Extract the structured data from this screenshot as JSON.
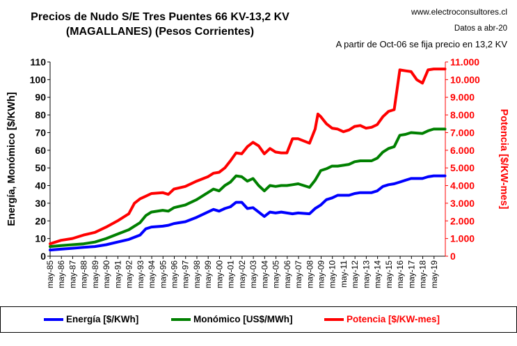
{
  "title_line1": "Precios de Nudo S/E Tres Puentes 66 KV-13,2 KV",
  "title_line2": "(MAGALLANES) (Pesos Corrientes)",
  "website": "www.electroconsultores.cl",
  "data_date": "Datos a abr-20",
  "note": "A partir de Oct-06 se fija precio en 13,2 KV",
  "chart_data": {
    "type": "line",
    "x_ticks": [
      "may-85",
      "may-86",
      "may-87",
      "may-88",
      "may-89",
      "may-90",
      "may-91",
      "may-92",
      "may-93",
      "may-94",
      "may-95",
      "may-96",
      "may-97",
      "may-98",
      "may-99",
      "may-00",
      "may-01",
      "may-02",
      "may-03",
      "may-04",
      "may-05",
      "may-06",
      "may-07",
      "may-08",
      "may-09",
      "may-10",
      "may-11",
      "may-12",
      "may-13",
      "may-14",
      "may-15",
      "may-16",
      "may-17",
      "may-18",
      "may-19"
    ],
    "y_left_label": "Energía, Monómico [$/KWh]",
    "y_left_ticks": [
      "0",
      "10",
      "20",
      "30",
      "40",
      "50",
      "60",
      "70",
      "80",
      "90",
      "100",
      "110"
    ],
    "y_left_range": [
      0,
      110
    ],
    "y_right_label": "Potencia [$/KW-mes]",
    "y_right_ticks": [
      "0",
      "1.000",
      "2.000",
      "3.000",
      "4.000",
      "5.000",
      "6.000",
      "7.000",
      "8.000",
      "9.000",
      "10.000",
      "11.000"
    ],
    "y_right_range": [
      0,
      11000
    ],
    "x_range": [
      1985.33,
      2020.33
    ],
    "series": [
      {
        "name": "Energía [$/KWh]",
        "axis": "left",
        "color": "#0000ff",
        "points": [
          [
            1985.33,
            3.5
          ],
          [
            1986.3,
            4
          ],
          [
            1987.3,
            4.5
          ],
          [
            1988.3,
            5
          ],
          [
            1989.3,
            5.5
          ],
          [
            1990.3,
            6.5
          ],
          [
            1991.3,
            8
          ],
          [
            1992.3,
            9.5
          ],
          [
            1993.3,
            12
          ],
          [
            1993.8,
            15.5
          ],
          [
            1994.3,
            16.5
          ],
          [
            1995.3,
            17
          ],
          [
            1995.8,
            17.5
          ],
          [
            1996.3,
            18.5
          ],
          [
            1997.3,
            19.5
          ],
          [
            1998.3,
            22
          ],
          [
            1999.3,
            25
          ],
          [
            1999.8,
            26.5
          ],
          [
            2000.3,
            25.5
          ],
          [
            2000.8,
            27
          ],
          [
            2001.3,
            28
          ],
          [
            2001.8,
            30.5
          ],
          [
            2002.3,
            30.5
          ],
          [
            2002.8,
            27
          ],
          [
            2003.3,
            27.5
          ],
          [
            2003.8,
            25
          ],
          [
            2004.3,
            22.5
          ],
          [
            2004.8,
            25
          ],
          [
            2005.3,
            24.5
          ],
          [
            2005.8,
            25
          ],
          [
            2006.3,
            24.5
          ],
          [
            2006.8,
            24
          ],
          [
            2007.3,
            24.5
          ],
          [
            2008.3,
            24
          ],
          [
            2008.8,
            27
          ],
          [
            2009.3,
            29
          ],
          [
            2009.8,
            32
          ],
          [
            2010.3,
            33
          ],
          [
            2010.8,
            34.5
          ],
          [
            2011.3,
            34.5
          ],
          [
            2011.8,
            34.5
          ],
          [
            2012.3,
            35.5
          ],
          [
            2012.8,
            36
          ],
          [
            2013.3,
            36
          ],
          [
            2013.8,
            36
          ],
          [
            2014.3,
            37
          ],
          [
            2014.8,
            39.5
          ],
          [
            2015.3,
            40.5
          ],
          [
            2015.8,
            41
          ],
          [
            2016.3,
            42
          ],
          [
            2016.8,
            43
          ],
          [
            2017.3,
            44
          ],
          [
            2018.3,
            44
          ],
          [
            2018.8,
            45
          ],
          [
            2019.3,
            45.5
          ],
          [
            2020.3,
            45.5
          ]
        ]
      },
      {
        "name": "Monómico [US$/MWh]",
        "axis": "left",
        "color": "#008000",
        "points": [
          [
            1985.33,
            5.5
          ],
          [
            1986.3,
            6
          ],
          [
            1987.3,
            6.5
          ],
          [
            1988.3,
            7
          ],
          [
            1989.3,
            8
          ],
          [
            1990.3,
            10
          ],
          [
            1991.3,
            12.5
          ],
          [
            1992.3,
            15
          ],
          [
            1993.3,
            19
          ],
          [
            1993.8,
            23
          ],
          [
            1994.3,
            25
          ],
          [
            1995.3,
            26
          ],
          [
            1995.8,
            25.5
          ],
          [
            1996.3,
            27.5
          ],
          [
            1997.3,
            29
          ],
          [
            1998.3,
            32
          ],
          [
            1999.3,
            36
          ],
          [
            1999.8,
            38
          ],
          [
            2000.3,
            37
          ],
          [
            2000.8,
            40
          ],
          [
            2001.3,
            42
          ],
          [
            2001.8,
            45.5
          ],
          [
            2002.3,
            45
          ],
          [
            2002.8,
            42.5
          ],
          [
            2003.3,
            44
          ],
          [
            2003.8,
            40
          ],
          [
            2004.3,
            37
          ],
          [
            2004.8,
            40
          ],
          [
            2005.3,
            39.5
          ],
          [
            2005.8,
            40
          ],
          [
            2006.3,
            40
          ],
          [
            2006.8,
            40.5
          ],
          [
            2007.3,
            41
          ],
          [
            2008.3,
            39
          ],
          [
            2008.8,
            43
          ],
          [
            2009.3,
            48.5
          ],
          [
            2009.8,
            49.5
          ],
          [
            2010.3,
            51
          ],
          [
            2010.8,
            51
          ],
          [
            2011.3,
            51.5
          ],
          [
            2011.8,
            52
          ],
          [
            2012.3,
            53.5
          ],
          [
            2012.8,
            54
          ],
          [
            2013.3,
            54
          ],
          [
            2013.8,
            54
          ],
          [
            2014.3,
            55.5
          ],
          [
            2014.8,
            59
          ],
          [
            2015.3,
            61
          ],
          [
            2015.8,
            62
          ],
          [
            2016.3,
            68.5
          ],
          [
            2016.8,
            69
          ],
          [
            2017.3,
            70
          ],
          [
            2018.3,
            69.5
          ],
          [
            2018.8,
            71
          ],
          [
            2019.3,
            72
          ],
          [
            2020.3,
            72
          ]
        ]
      },
      {
        "name": "Potencia [$/KW-mes]",
        "axis": "right",
        "color": "#ff0000",
        "points": [
          [
            1985.33,
            700
          ],
          [
            1986.3,
            900
          ],
          [
            1987.3,
            1000
          ],
          [
            1988.3,
            1200
          ],
          [
            1989.3,
            1350
          ],
          [
            1990.3,
            1650
          ],
          [
            1991.3,
            2000
          ],
          [
            1992.3,
            2400
          ],
          [
            1992.8,
            3000
          ],
          [
            1993.3,
            3250
          ],
          [
            1993.8,
            3400
          ],
          [
            1994.3,
            3550
          ],
          [
            1995.3,
            3600
          ],
          [
            1995.8,
            3500
          ],
          [
            1996.3,
            3800
          ],
          [
            1997.3,
            3950
          ],
          [
            1998.3,
            4250
          ],
          [
            1999.3,
            4500
          ],
          [
            1999.8,
            4700
          ],
          [
            2000.3,
            4750
          ],
          [
            2000.8,
            5000
          ],
          [
            2001.3,
            5400
          ],
          [
            2001.8,
            5850
          ],
          [
            2002.3,
            5800
          ],
          [
            2002.8,
            6200
          ],
          [
            2003.3,
            6450
          ],
          [
            2003.8,
            6250
          ],
          [
            2004.3,
            5800
          ],
          [
            2004.8,
            6100
          ],
          [
            2005.3,
            5900
          ],
          [
            2005.8,
            5850
          ],
          [
            2006.3,
            5850
          ],
          [
            2006.8,
            6650
          ],
          [
            2007.3,
            6650
          ],
          [
            2008.3,
            6400
          ],
          [
            2008.8,
            7200
          ],
          [
            2009.05,
            8050
          ],
          [
            2009.3,
            7900
          ],
          [
            2009.8,
            7500
          ],
          [
            2010.3,
            7250
          ],
          [
            2010.8,
            7200
          ],
          [
            2011.3,
            7050
          ],
          [
            2011.8,
            7150
          ],
          [
            2012.3,
            7350
          ],
          [
            2012.8,
            7400
          ],
          [
            2013.3,
            7250
          ],
          [
            2013.8,
            7300
          ],
          [
            2014.3,
            7450
          ],
          [
            2014.8,
            7900
          ],
          [
            2015.3,
            8200
          ],
          [
            2015.8,
            8300
          ],
          [
            2016.3,
            10550
          ],
          [
            2016.8,
            10500
          ],
          [
            2017.3,
            10450
          ],
          [
            2017.8,
            10000
          ],
          [
            2018.3,
            9800
          ],
          [
            2018.8,
            10550
          ],
          [
            2019.3,
            10600
          ],
          [
            2020.3,
            10600
          ]
        ]
      }
    ],
    "legend_position": "bottom"
  },
  "colors": {
    "blue": "#0000ff",
    "green": "#008000",
    "red": "#ff0000"
  }
}
